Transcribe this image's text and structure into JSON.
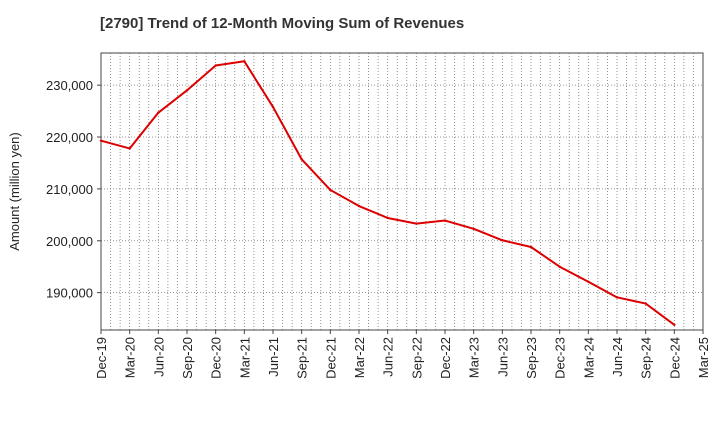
{
  "chart_data": {
    "type": "line",
    "title": "[2790]  Trend of 12-Month Moving Sum of Revenues",
    "ylabel": "Amount (million yen)",
    "xlabel": "",
    "ylim": [
      182800,
      236200
    ],
    "y_ticks": [
      190000,
      200000,
      210000,
      220000,
      230000
    ],
    "y_tick_labels": [
      "190,000",
      "200,000",
      "210,000",
      "220,000",
      "230,000"
    ],
    "x_tick_labels": [
      "Dec-19",
      "Mar-20",
      "Jun-20",
      "Sep-20",
      "Dec-20",
      "Mar-21",
      "Jun-21",
      "Sep-21",
      "Dec-21",
      "Mar-22",
      "Jun-22",
      "Sep-22",
      "Dec-22",
      "Mar-23",
      "Jun-23",
      "Sep-23",
      "Dec-23",
      "Mar-24",
      "Jun-24",
      "Sep-24",
      "Dec-24",
      "Mar-25"
    ],
    "grid": true,
    "series_color": "#dd0000",
    "series": [
      {
        "x": [
          "Dec-19",
          "Mar-20",
          "Jun-20",
          "Sep-20",
          "Dec-20",
          "Mar-21",
          "Jun-21",
          "Sep-21",
          "Dec-21",
          "Mar-22",
          "Jun-22",
          "Sep-22",
          "Dec-22",
          "Mar-23",
          "Jun-23",
          "Sep-23",
          "Dec-23",
          "Mar-24",
          "Jun-24",
          "Sep-24",
          "Dec-24"
        ],
        "values": [
          219300,
          217800,
          224700,
          229000,
          233800,
          234600,
          225800,
          215700,
          209800,
          206700,
          204400,
          203300,
          203900,
          202300,
          200100,
          198800,
          195000,
          192100,
          189100,
          187900,
          183800
        ]
      }
    ]
  }
}
